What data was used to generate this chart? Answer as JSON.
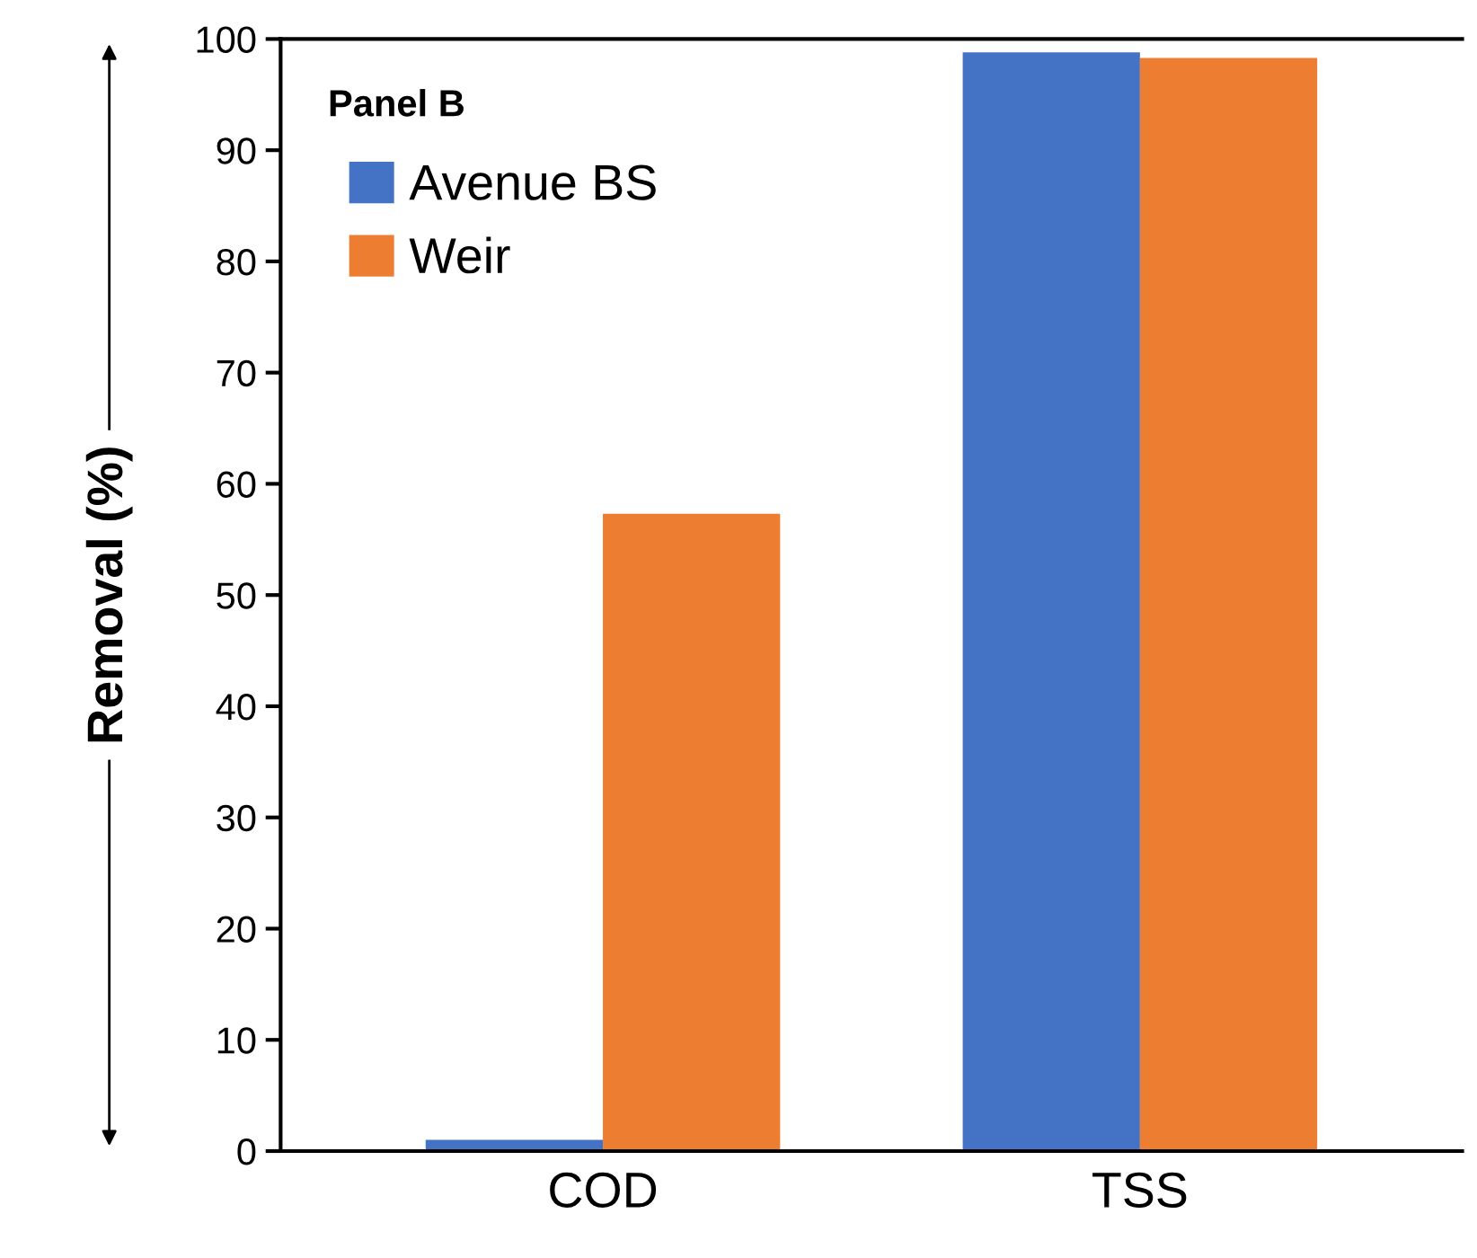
{
  "chart_data": {
    "type": "bar",
    "ylabel": "Removal (%)",
    "annotations": [
      "Panel B"
    ],
    "categories": [
      "COD",
      "TSS"
    ],
    "series": [
      {
        "name": "Avenue BS",
        "color": "#4472c4",
        "values": [
          1,
          98.8
        ]
      },
      {
        "name": "Weir",
        "color": "#ed7d31",
        "values": [
          57.3,
          98.3
        ]
      }
    ],
    "ylim": [
      0,
      100
    ],
    "yticks": [
      0,
      10,
      20,
      30,
      40,
      50,
      60,
      70,
      80,
      90,
      100
    ],
    "grid": false,
    "legend": "top left"
  }
}
